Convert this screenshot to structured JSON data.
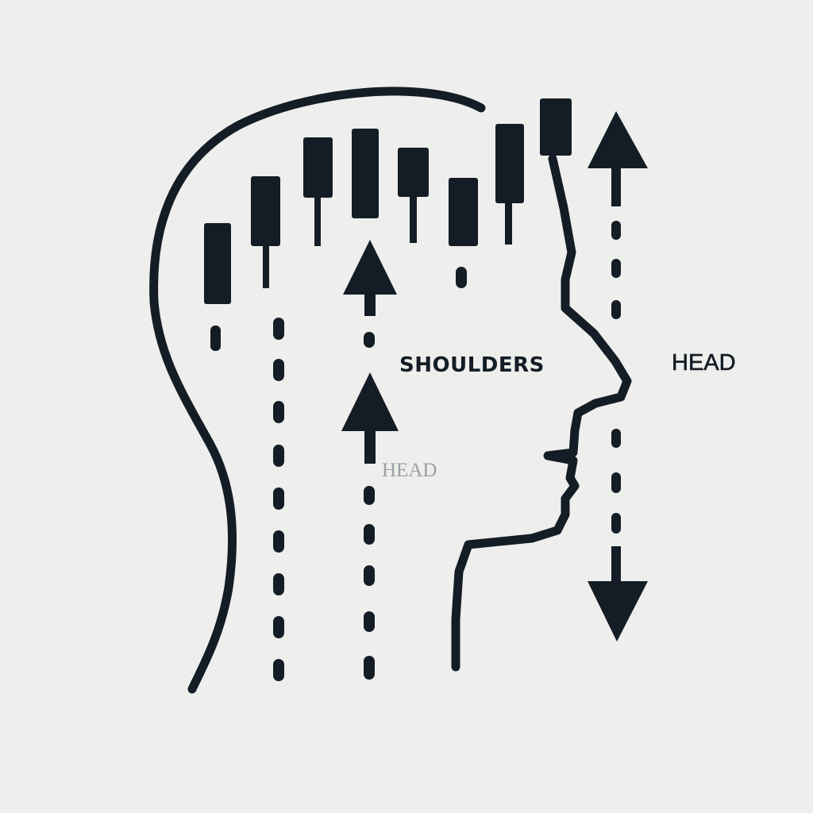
{
  "colors": {
    "background": "#eeeeec",
    "ink": "#141d26",
    "faint_text": "#9aa0a6"
  },
  "labels": {
    "shoulders": "SHOULDERS",
    "head_right": "HEAD",
    "head_faint": "HEAD"
  },
  "icons": [
    "head-profile-outline-icon",
    "candlestick-icon",
    "arrow-up-icon",
    "arrow-down-icon",
    "dashed-guide-line-icon"
  ]
}
